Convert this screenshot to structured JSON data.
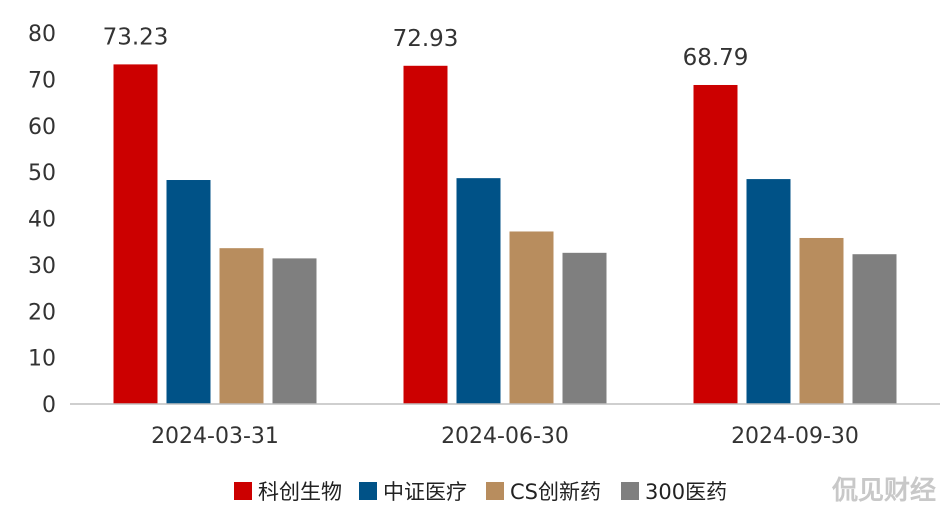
{
  "chart_data": {
    "type": "bar",
    "categories": [
      "2024-03-31",
      "2024-06-30",
      "2024-09-30"
    ],
    "series": [
      {
        "name": "科创生物",
        "color": "#cc0000",
        "values": [
          73.23,
          72.93,
          68.79
        ],
        "labels": [
          "73.23",
          "72.93",
          "68.79"
        ]
      },
      {
        "name": "中证医疗",
        "color": "#005287",
        "values": [
          48.3,
          48.7,
          48.5
        ]
      },
      {
        "name": "CS创新药",
        "color": "#b88d5e",
        "values": [
          33.6,
          37.2,
          35.8
        ]
      },
      {
        "name": "300医药",
        "color": "#7f7f7f",
        "values": [
          31.4,
          32.6,
          32.3
        ]
      }
    ],
    "yticks": [
      "0",
      "10",
      "20",
      "30",
      "40",
      "50",
      "60",
      "70",
      "80"
    ],
    "ylim": [
      0,
      80
    ],
    "grid": false,
    "legend_position": "bottom"
  },
  "watermark": "侃见财经"
}
